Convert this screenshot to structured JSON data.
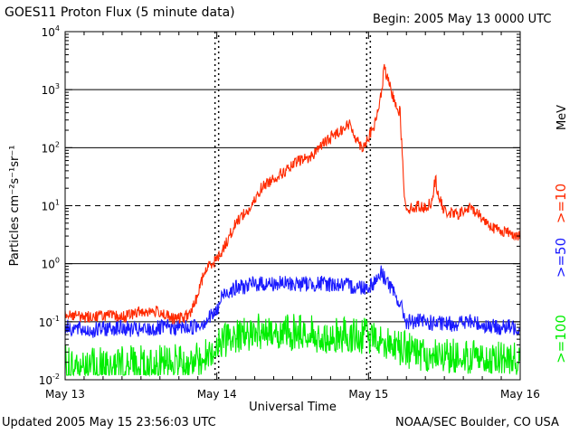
{
  "header": {
    "title": "GOES11 Proton Flux (5 minute data)",
    "begin": "Begin: 2005 May 13 0000 UTC"
  },
  "footer": {
    "updated": "Updated 2005 May 15 23:56:03 UTC",
    "source": "NOAA/SEC Boulder, CO USA"
  },
  "colors": {
    "ge10": "#ff2a00",
    "ge50": "#1a1aff",
    "ge100": "#00ee00",
    "axis": "#000000"
  },
  "chart_data": {
    "type": "line",
    "title": "GOES11 Proton Flux (5 minute data)",
    "xlabel": "Universal Time",
    "ylabel": "Particles cm⁻²s⁻¹sr⁻¹",
    "y_scale": "log",
    "ylim": [
      0.01,
      10000
    ],
    "xlim": [
      0,
      72
    ],
    "x_unit": "hours since 2005 May 13 0000 UTC",
    "x_ticks": [
      {
        "hour": 0,
        "label": "May 13"
      },
      {
        "hour": 24,
        "label": "May 14"
      },
      {
        "hour": 48,
        "label": "May 15"
      },
      {
        "hour": 72,
        "label": "May 16"
      }
    ],
    "y_ticks": [
      {
        "base": "10",
        "exp": "-2",
        "value": 0.01
      },
      {
        "base": "10",
        "exp": "-1",
        "value": 0.1
      },
      {
        "base": "10",
        "exp": "0",
        "value": 1
      },
      {
        "base": "10",
        "exp": "1",
        "value": 10
      },
      {
        "base": "10",
        "exp": "2",
        "value": 100
      },
      {
        "base": "10",
        "exp": "3",
        "value": 1000
      },
      {
        "base": "10",
        "exp": "4",
        "value": 10000
      }
    ],
    "threshold_lines": [
      {
        "value": 0.1,
        "style": "solid"
      },
      {
        "value": 1,
        "style": "solid"
      },
      {
        "value": 10,
        "style": "dashed"
      },
      {
        "value": 100,
        "style": "solid"
      },
      {
        "value": 1000,
        "style": "solid"
      }
    ],
    "day_marker_hours": [
      24,
      48
    ],
    "legend": {
      "unit": "MeV",
      "placement": "right, rotated",
      "entries": [
        {
          "label": ">=10",
          "series": 0
        },
        {
          "label": ">=50",
          "series": 1
        },
        {
          "label": ">=100",
          "series": 2
        }
      ]
    },
    "series": [
      {
        "name": ">=10 MeV",
        "noise_decades": 0.1,
        "points": [
          [
            0,
            0.14
          ],
          [
            3,
            0.12
          ],
          [
            6,
            0.13
          ],
          [
            9,
            0.12
          ],
          [
            12,
            0.15
          ],
          [
            15,
            0.15
          ],
          [
            17,
            0.11
          ],
          [
            19,
            0.12
          ],
          [
            20,
            0.15
          ],
          [
            21,
            0.3
          ],
          [
            22,
            0.7
          ],
          [
            23,
            1.0
          ],
          [
            24,
            1.2
          ],
          [
            25,
            1.8
          ],
          [
            26,
            3.0
          ],
          [
            27,
            5.0
          ],
          [
            28,
            7.0
          ],
          [
            29,
            8.0
          ],
          [
            30,
            12
          ],
          [
            31,
            20
          ],
          [
            33,
            30
          ],
          [
            35,
            40
          ],
          [
            37,
            60
          ],
          [
            39,
            70
          ],
          [
            40,
            100
          ],
          [
            41,
            120
          ],
          [
            42,
            150
          ],
          [
            43,
            180
          ],
          [
            44,
            220
          ],
          [
            45,
            250
          ],
          [
            46,
            150
          ],
          [
            47,
            100
          ],
          [
            48,
            150
          ],
          [
            49,
            250
          ],
          [
            50,
            800
          ],
          [
            50.5,
            2500
          ],
          [
            51,
            1500
          ],
          [
            52,
            700
          ],
          [
            53,
            400
          ],
          [
            53.6,
            20
          ],
          [
            54,
            9
          ],
          [
            55,
            9
          ],
          [
            56,
            10
          ],
          [
            57,
            9
          ],
          [
            58,
            12
          ],
          [
            58.6,
            30
          ],
          [
            59,
            15
          ],
          [
            60,
            8
          ],
          [
            62,
            7
          ],
          [
            64,
            9
          ],
          [
            65,
            8
          ],
          [
            66,
            6
          ],
          [
            68,
            4
          ],
          [
            70,
            3.5
          ],
          [
            72,
            3.0
          ]
        ]
      },
      {
        "name": ">=50 MeV",
        "noise_decades": 0.14,
        "points": [
          [
            0,
            0.08
          ],
          [
            4,
            0.07
          ],
          [
            8,
            0.08
          ],
          [
            12,
            0.07
          ],
          [
            16,
            0.08
          ],
          [
            20,
            0.08
          ],
          [
            22,
            0.1
          ],
          [
            24,
            0.15
          ],
          [
            25,
            0.3
          ],
          [
            26,
            0.35
          ],
          [
            28,
            0.4
          ],
          [
            30,
            0.45
          ],
          [
            34,
            0.45
          ],
          [
            38,
            0.45
          ],
          [
            42,
            0.45
          ],
          [
            46,
            0.4
          ],
          [
            48,
            0.4
          ],
          [
            49,
            0.5
          ],
          [
            50,
            0.7
          ],
          [
            51,
            0.5
          ],
          [
            52,
            0.3
          ],
          [
            53,
            0.2
          ],
          [
            54,
            0.1
          ],
          [
            56,
            0.1
          ],
          [
            60,
            0.09
          ],
          [
            64,
            0.1
          ],
          [
            68,
            0.08
          ],
          [
            72,
            0.08
          ]
        ]
      },
      {
        "name": ">=100 MeV",
        "noise_decades": 0.3,
        "points": [
          [
            0,
            0.02
          ],
          [
            8,
            0.02
          ],
          [
            16,
            0.02
          ],
          [
            22,
            0.025
          ],
          [
            24,
            0.04
          ],
          [
            26,
            0.06
          ],
          [
            30,
            0.07
          ],
          [
            36,
            0.07
          ],
          [
            42,
            0.06
          ],
          [
            48,
            0.06
          ],
          [
            50,
            0.06
          ],
          [
            52,
            0.04
          ],
          [
            56,
            0.03
          ],
          [
            64,
            0.025
          ],
          [
            72,
            0.025
          ]
        ]
      }
    ]
  }
}
